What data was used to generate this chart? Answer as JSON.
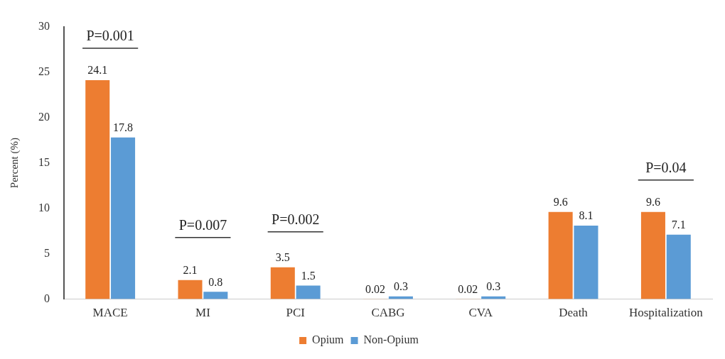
{
  "chart_data": {
    "type": "bar",
    "ylabel": "Percent (%)",
    "categories": [
      "MACE",
      "MI",
      "PCI",
      "CABG",
      "CVA",
      "Death",
      "Hospitalization"
    ],
    "series": [
      {
        "name": "Opium",
        "color": "#ed7d31",
        "values": [
          24.1,
          2.1,
          3.5,
          0.02,
          0.02,
          9.6,
          9.6
        ]
      },
      {
        "name": "Non-Opium",
        "color": "#5b9bd5",
        "values": [
          17.8,
          0.8,
          1.5,
          0.3,
          0.3,
          8.1,
          7.1
        ]
      }
    ],
    "ylim": [
      0,
      30
    ],
    "yticks": [
      0,
      5,
      10,
      15,
      20,
      25,
      30
    ],
    "grid": false,
    "legend": "bottom",
    "data_labels": true,
    "annotations": [
      "P=0.001",
      "P=0.007",
      "P=0.002",
      "P=0.04"
    ]
  }
}
